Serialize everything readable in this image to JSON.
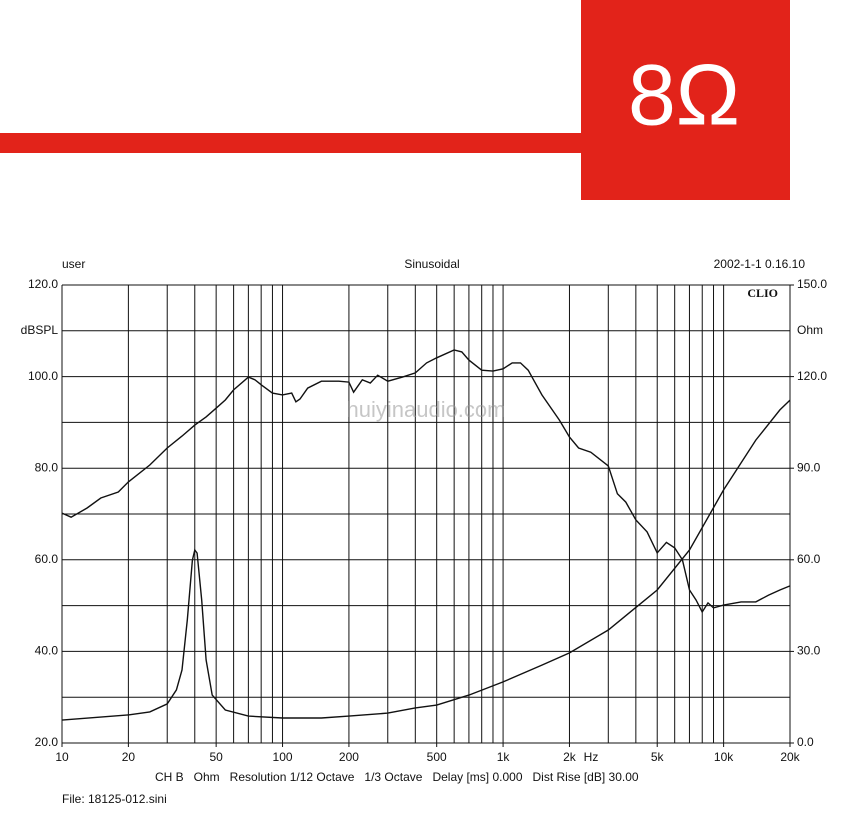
{
  "badge": "8Ω",
  "chart_data": {
    "type": "line",
    "header_left": "user",
    "header_center": "Sinusoidal",
    "header_right": "2002-1-1 0.16.10",
    "brand": "CLIO",
    "y_label": "dBSPL",
    "y2_label": "Ohm",
    "x_label": "Hz",
    "footer": "CH B   Ohm   Resolution 1/12 Octave   1/3 Octave   Delay [ms] 0.000   Dist Rise [dB] 30.00",
    "file": "File: 18125-012.sini",
    "watermark": "huiyinaudio.com",
    "log_x": true,
    "xlim": [
      10,
      20000
    ],
    "xticks": [
      10,
      20,
      50,
      100,
      200,
      500,
      {
        "value": 1000,
        "label": "1k"
      },
      {
        "value": 2000,
        "label": "2k"
      },
      {
        "value": 5000,
        "label": "5k"
      },
      {
        "value": 10000,
        "label": "10k"
      },
      {
        "value": 20000,
        "label": "20k"
      }
    ],
    "xgrid": [
      10,
      20,
      30,
      40,
      50,
      60,
      70,
      80,
      90,
      100,
      200,
      300,
      400,
      500,
      600,
      700,
      800,
      900,
      1000,
      2000,
      3000,
      4000,
      5000,
      6000,
      7000,
      8000,
      9000,
      10000,
      20000
    ],
    "ylim": [
      20,
      120
    ],
    "yticks": [
      {
        "value": 20,
        "label": "20.0"
      },
      {
        "value": 40,
        "label": "40.0"
      },
      {
        "value": 60,
        "label": "60.0"
      },
      {
        "value": 80,
        "label": "80.0"
      },
      {
        "value": 100,
        "label": "100.0"
      },
      {
        "value": 120,
        "label": "120.0"
      }
    ],
    "y_minor_ticks": [
      30,
      50,
      70,
      90,
      110
    ],
    "y2lim": [
      0,
      150
    ],
    "y2ticks": [
      {
        "value": 0,
        "label": "0.0"
      },
      {
        "value": 30,
        "label": "30.0"
      },
      {
        "value": 60,
        "label": "60.0"
      },
      {
        "value": 90,
        "label": "90.0"
      },
      {
        "value": 120,
        "label": "120.0"
      },
      {
        "value": 150,
        "label": "150.0"
      }
    ],
    "grid": true,
    "series": [
      {
        "name": "dBSPL",
        "color": "#111111",
        "x": [
          10,
          11,
          13,
          15,
          18,
          20,
          25,
          30,
          35,
          40,
          45,
          50,
          55,
          60,
          70,
          75,
          80,
          90,
          100,
          110,
          115,
          120,
          130,
          150,
          180,
          200,
          210,
          230,
          250,
          270,
          300,
          350,
          400,
          450,
          500,
          600,
          650,
          700,
          800,
          900,
          1000,
          1100,
          1200,
          1300,
          1500,
          1800,
          2000,
          2200,
          2500,
          3000,
          3300,
          3600,
          4000,
          4500,
          5000,
          5500,
          6000,
          6500,
          7000,
          7500,
          8000,
          8500,
          9000,
          10000,
          12000,
          14000,
          16000,
          18000,
          20000
        ],
        "values": [
          70.2,
          69.3,
          71.3,
          73.5,
          74.8,
          77,
          80.7,
          84.4,
          87,
          89.4,
          91.2,
          93.1,
          94.9,
          97.1,
          99.9,
          99.3,
          98.2,
          96.4,
          96,
          96.4,
          94.5,
          95.1,
          97.5,
          99,
          99,
          98.8,
          96.6,
          99.3,
          98.6,
          100.3,
          99,
          99.9,
          100.8,
          103,
          104.1,
          105.8,
          105.4,
          103.6,
          101.4,
          101.2,
          101.7,
          103,
          103,
          101.4,
          96,
          90.5,
          86.8,
          84.4,
          83.5,
          80.5,
          74.4,
          72.6,
          68.7,
          66.1,
          61.5,
          63.8,
          62.6,
          60,
          53.4,
          51.2,
          48.6,
          50.6,
          49.5,
          50.1,
          50.8,
          50.8,
          52.3,
          53.4,
          54.3
        ]
      },
      {
        "name": "Ohm",
        "color": "#111111",
        "axis": "y2",
        "x": [
          10,
          20,
          25,
          30,
          33,
          35,
          37,
          39,
          40,
          41,
          43,
          45,
          48,
          55,
          70,
          100,
          150,
          200,
          300,
          400,
          500,
          700,
          1000,
          1500,
          2000,
          3000,
          5000,
          7000,
          10000,
          14000,
          18000,
          20000
        ],
        "values": [
          7.5,
          9.2,
          10.2,
          12.8,
          17.4,
          23.9,
          40.3,
          59.9,
          63.2,
          62.2,
          46.8,
          27.2,
          15.7,
          10.8,
          8.8,
          8.2,
          8.2,
          8.8,
          9.8,
          11.5,
          12.4,
          15.7,
          20,
          25.5,
          29.5,
          37,
          50.1,
          63.2,
          82.9,
          99.2,
          109.1,
          112.3
        ]
      }
    ]
  }
}
